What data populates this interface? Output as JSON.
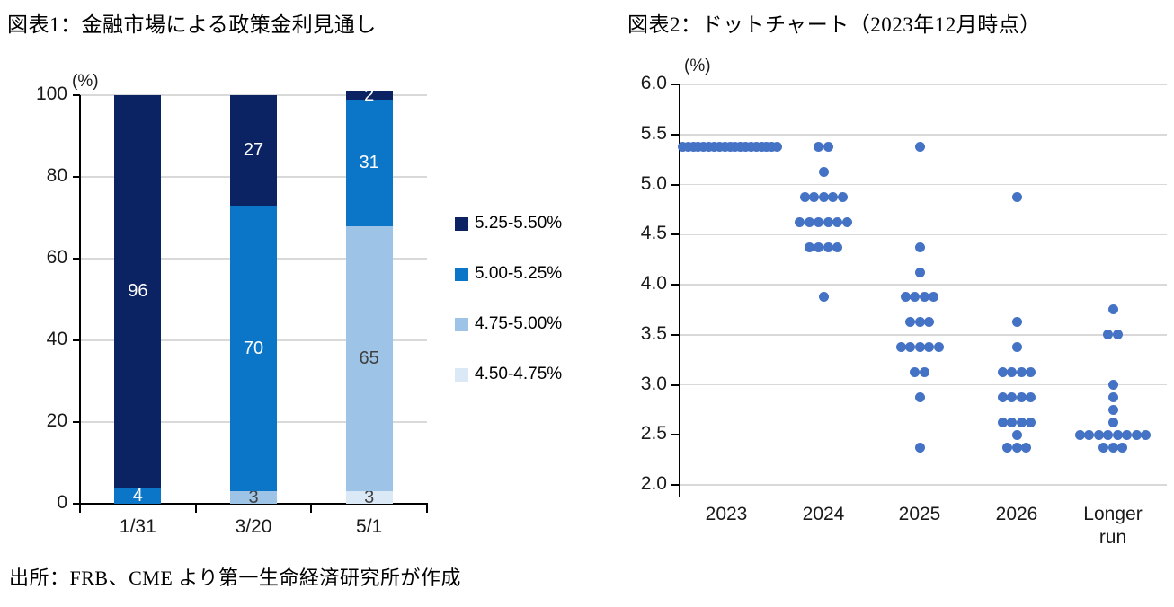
{
  "source": "出所：FRB、CME より第一生命経済研究所が作成",
  "colors": {
    "navy": "#0b2363",
    "blue": "#0b76c8",
    "light_blue": "#9dc3e6",
    "pale_blue": "#dbe9f6",
    "dot": "#4472c4",
    "gridline": "#d9d9d9",
    "axis": "#000000",
    "label_dark": "#404040",
    "label_light": "#ffffff"
  },
  "chart_data": [
    {
      "type": "bar",
      "stacked": true,
      "title": "図表1：金融市場による政策金利見通し",
      "unit_label": "(%)",
      "categories": [
        "1/31",
        "3/20",
        "5/1"
      ],
      "series": [
        {
          "name": "4.50-4.75%",
          "color": "#dbe9f6",
          "label_color": "#404040",
          "values": [
            0,
            0,
            3
          ]
        },
        {
          "name": "4.75-5.00%",
          "color": "#9dc3e6",
          "label_color": "#404040",
          "values": [
            0,
            3,
            65
          ]
        },
        {
          "name": "5.00-5.25%",
          "color": "#0b76c8",
          "label_color": "#ffffff",
          "values": [
            4,
            70,
            31
          ]
        },
        {
          "name": "5.25-5.50%",
          "color": "#0b2363",
          "label_color": "#ffffff",
          "values": [
            96,
            27,
            2
          ]
        }
      ],
      "ylim": [
        0,
        100
      ],
      "yticks": [
        0,
        20,
        40,
        60,
        80,
        100
      ],
      "grid": true,
      "legend_position": "right",
      "legend": [
        "5.25-5.50%",
        "5.00-5.25%",
        "4.75-5.00%",
        "4.50-4.75%"
      ]
    },
    {
      "type": "scatter",
      "title": "図表2：ドットチャート（2023年12月時点）",
      "unit_label": "(%)",
      "categories": [
        "2023",
        "2024",
        "2025",
        "2026",
        "Longer run"
      ],
      "ylim": [
        2.0,
        6.0
      ],
      "ytick_step": 0.5,
      "grid": true,
      "dot_color": "#4472c4",
      "series": [
        {
          "category": "2023",
          "dots": [
            {
              "value": 5.375,
              "count": 19
            }
          ]
        },
        {
          "category": "2024",
          "dots": [
            {
              "value": 5.375,
              "count": 2
            },
            {
              "value": 5.125,
              "count": 1
            },
            {
              "value": 4.875,
              "count": 5
            },
            {
              "value": 4.625,
              "count": 6
            },
            {
              "value": 4.375,
              "count": 4
            },
            {
              "value": 3.875,
              "count": 1
            }
          ]
        },
        {
          "category": "2025",
          "dots": [
            {
              "value": 5.375,
              "count": 1
            },
            {
              "value": 4.375,
              "count": 1
            },
            {
              "value": 4.125,
              "count": 1
            },
            {
              "value": 3.875,
              "count": 4
            },
            {
              "value": 3.625,
              "count": 3
            },
            {
              "value": 3.375,
              "count": 5
            },
            {
              "value": 3.125,
              "count": 2
            },
            {
              "value": 2.875,
              "count": 1
            },
            {
              "value": 2.375,
              "count": 1
            }
          ]
        },
        {
          "category": "2026",
          "dots": [
            {
              "value": 4.875,
              "count": 1
            },
            {
              "value": 3.625,
              "count": 1
            },
            {
              "value": 3.375,
              "count": 1
            },
            {
              "value": 3.125,
              "count": 4
            },
            {
              "value": 2.875,
              "count": 4
            },
            {
              "value": 2.625,
              "count": 4
            },
            {
              "value": 2.5,
              "count": 1
            },
            {
              "value": 2.375,
              "count": 3
            }
          ]
        },
        {
          "category": "Longer run",
          "dots": [
            {
              "value": 3.75,
              "count": 1
            },
            {
              "value": 3.5,
              "count": 2
            },
            {
              "value": 3.0,
              "count": 1
            },
            {
              "value": 2.875,
              "count": 1
            },
            {
              "value": 2.75,
              "count": 1
            },
            {
              "value": 2.625,
              "count": 1
            },
            {
              "value": 2.5,
              "count": 8
            },
            {
              "value": 2.375,
              "count": 3
            }
          ]
        }
      ]
    }
  ]
}
